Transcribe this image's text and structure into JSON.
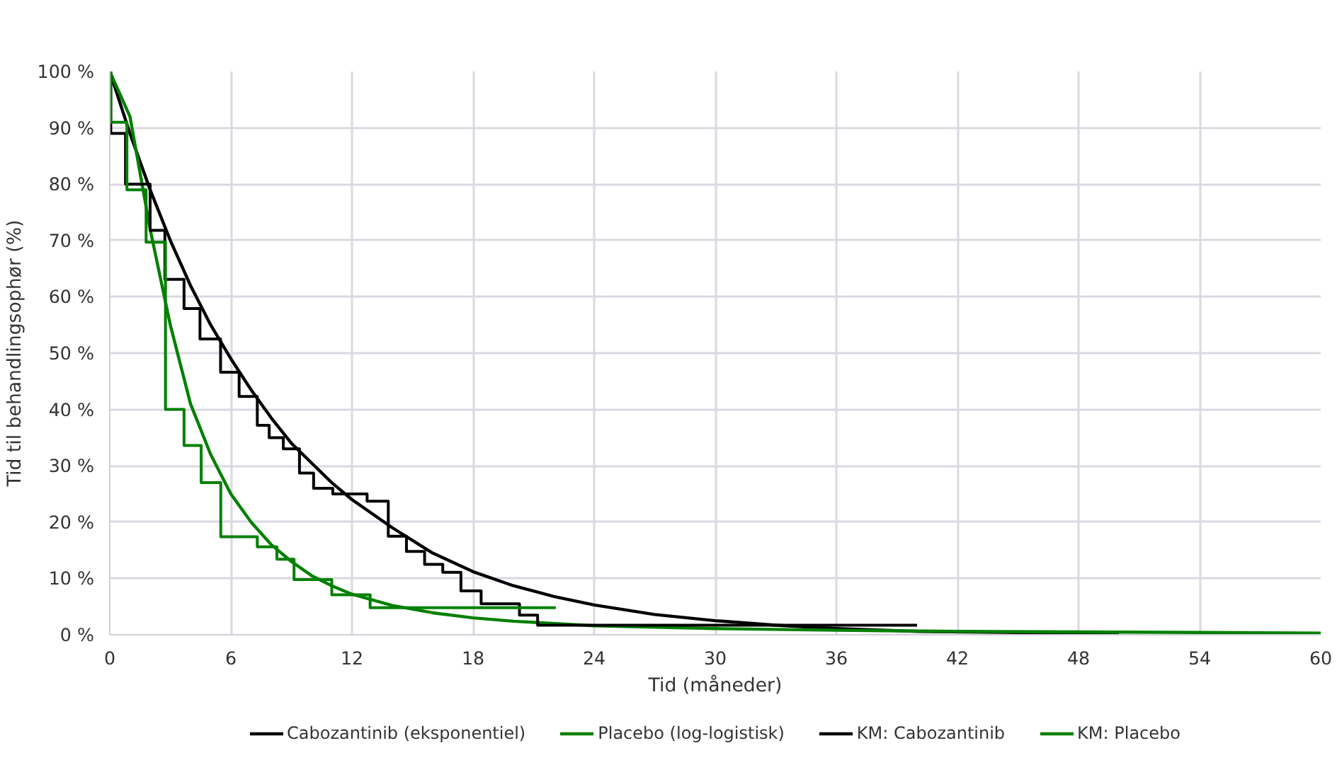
{
  "chart_data": {
    "type": "line",
    "xlabel": "Tid (måneder)",
    "ylabel": "Tid til behandlingsophør (%)",
    "xlim": [
      0,
      60
    ],
    "xticks": [
      0,
      6,
      12,
      18,
      24,
      30,
      36,
      42,
      48,
      54,
      60
    ],
    "ylim": [
      0,
      100
    ],
    "yticks": [
      {
        "value": 0,
        "label": "0 %"
      },
      {
        "value": 10,
        "label": "10 %"
      },
      {
        "value": 20,
        "label": "20 %"
      },
      {
        "value": 30,
        "label": "30 %"
      },
      {
        "value": 40,
        "label": "40 %"
      },
      {
        "value": 50,
        "label": "50 %"
      },
      {
        "value": 60,
        "label": "60 %"
      },
      {
        "value": 70,
        "label": "70 %"
      },
      {
        "value": 80,
        "label": "80 %"
      },
      {
        "value": 90,
        "label": "90 %"
      },
      {
        "value": 100,
        "label": "100 %"
      }
    ],
    "grid": true,
    "legend": "bottom",
    "marker": "none",
    "line_style": "solid",
    "series": [
      {
        "name": "Cabozantinib (eksponentiel)",
        "color": "#000000",
        "x": [
          0,
          1,
          2,
          3,
          4,
          5,
          6,
          7,
          8,
          9,
          10,
          11,
          12,
          14,
          16,
          18,
          20,
          22,
          24,
          27,
          30,
          33,
          36,
          40,
          45,
          50
        ],
        "values": [
          100,
          89,
          79,
          70,
          62,
          55,
          49,
          43.5,
          38.5,
          34,
          30.5,
          27,
          24,
          19,
          14.5,
          11.2,
          8.7,
          6.8,
          5.3,
          3.6,
          2.5,
          1.7,
          1.1,
          0.6,
          0.4,
          0.2
        ]
      },
      {
        "name": "Placebo (log-logistisk)",
        "color": "#008000",
        "x": [
          0,
          1,
          2,
          3,
          4,
          5,
          6,
          7,
          8,
          9,
          10,
          11,
          12,
          14,
          16,
          18,
          20,
          24,
          30,
          36,
          42,
          48,
          54,
          60
        ],
        "values": [
          100,
          92,
          72,
          55,
          41,
          32,
          25,
          20,
          16,
          13,
          10.5,
          8.7,
          7.2,
          5.2,
          3.9,
          3,
          2.4,
          1.6,
          1.1,
          0.8,
          0.6,
          0.5,
          0.4,
          0.3
        ]
      },
      {
        "name": "KM: Cabozantinib",
        "color": "#000000",
        "type": "step",
        "x": [
          0,
          0.05,
          0.78,
          2.0,
          2.73,
          3.68,
          4.47,
          5.49,
          6.41,
          7.31,
          7.9,
          8.6,
          9.4,
          10.1,
          11.05,
          12.75,
          13.8,
          14.7,
          15.6,
          16.5,
          17.4,
          18.4,
          20.3,
          21.2,
          40
        ],
        "values": [
          100,
          89,
          80,
          71.8,
          63.1,
          57.9,
          52.5,
          46.6,
          42.3,
          37.2,
          35,
          33,
          28.7,
          26,
          25,
          23.7,
          17.5,
          14.8,
          12.5,
          11.1,
          7.8,
          5.5,
          3.5,
          1.7,
          1.7
        ]
      },
      {
        "name": "KM: Placebo",
        "color": "#008000",
        "type": "step",
        "x": [
          0,
          0.05,
          0.85,
          1.8,
          2.76,
          3.68,
          4.53,
          5.5,
          7.31,
          8.28,
          9.13,
          11.0,
          12.9,
          22.1
        ],
        "values": [
          100,
          91,
          79,
          69.7,
          40,
          33.6,
          27,
          17.4,
          15.6,
          13.4,
          9.8,
          7.1,
          4.8,
          4.8
        ]
      }
    ]
  }
}
